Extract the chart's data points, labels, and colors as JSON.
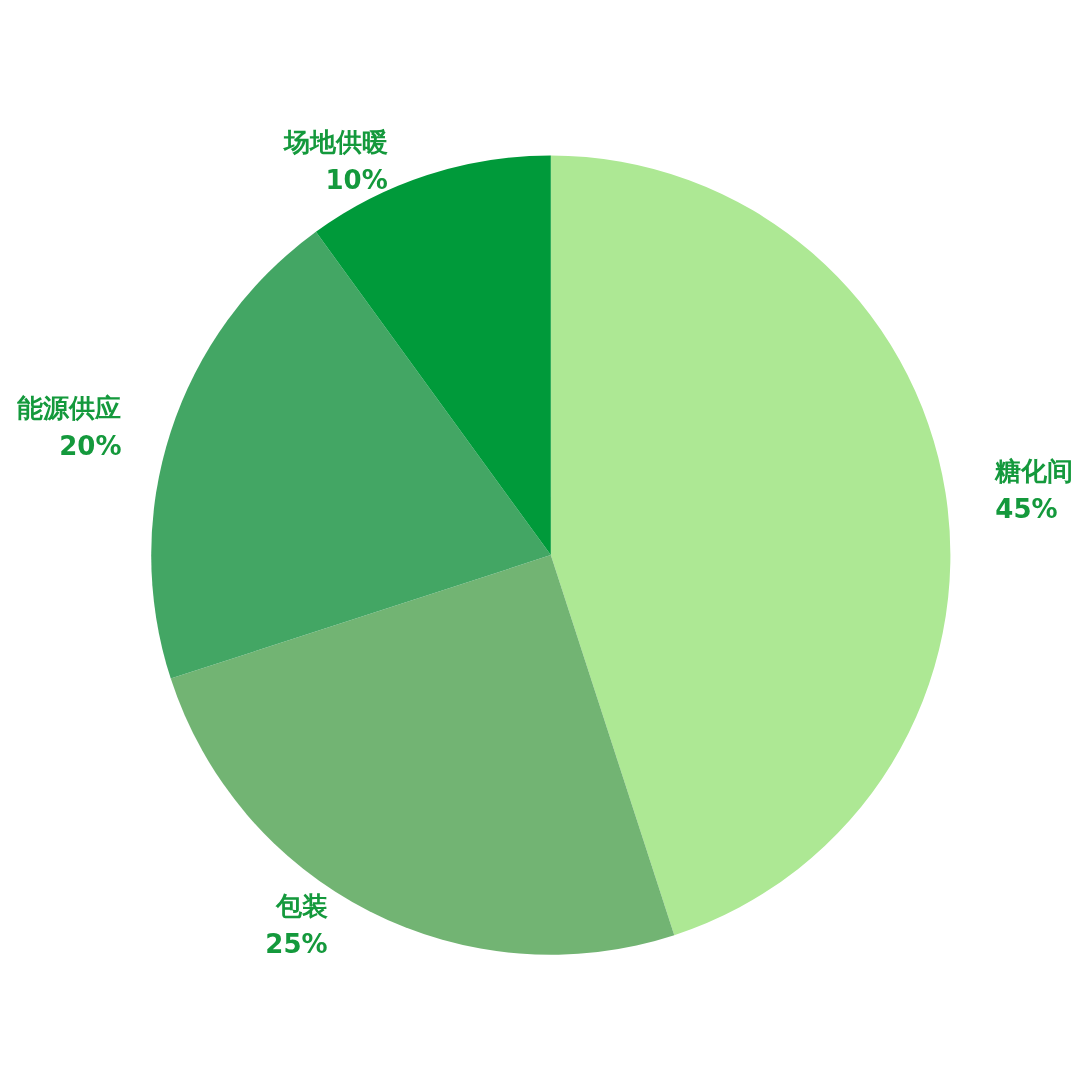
{
  "chart_data": {
    "type": "pie",
    "categories": [
      "糖化间",
      "包装",
      "能源供应",
      "场地供暖"
    ],
    "values": [
      45,
      25,
      20,
      10
    ],
    "value_labels": [
      "45%",
      "25%",
      "20%",
      "10%"
    ],
    "colors": [
      "#ade894",
      "#72b473",
      "#43a664",
      "#009a3a"
    ],
    "legend": false
  }
}
